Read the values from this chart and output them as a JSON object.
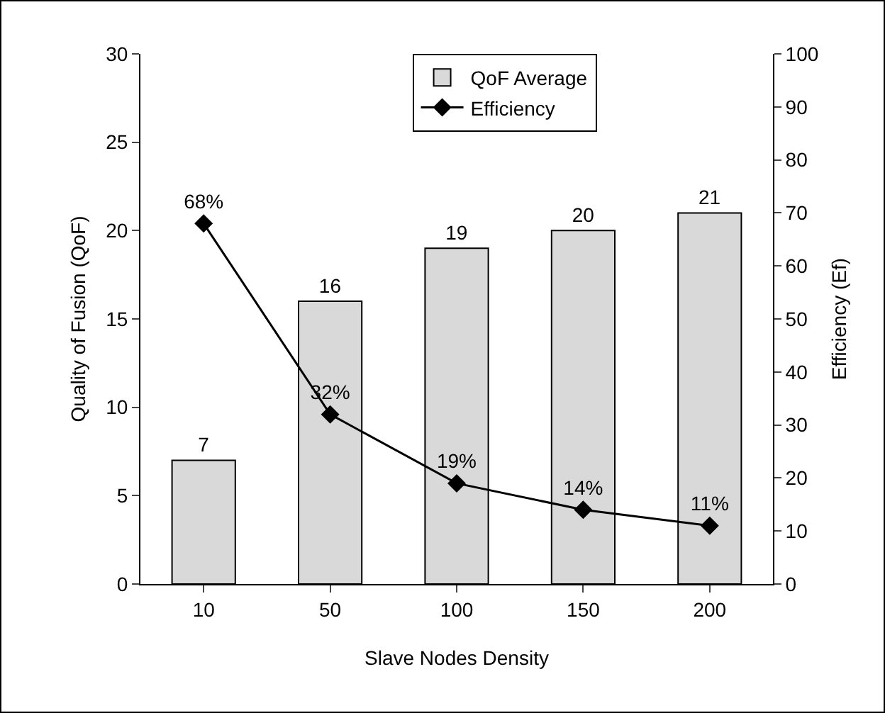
{
  "chart_data": {
    "type": "bar",
    "xlabel": "Slave Nodes Density",
    "ylabel": "Quality of Fusion (QoF)",
    "y2label": "Efficiency (Ef)",
    "categories": [
      "10",
      "50",
      "100",
      "150",
      "200"
    ],
    "series": [
      {
        "name": "QoF Average",
        "color": "#d9d9d9",
        "values": [
          7,
          16,
          19,
          20,
          21
        ],
        "value_labels": [
          "7",
          "16",
          "19",
          "20",
          "21"
        ]
      },
      {
        "name": "Efficiency",
        "type": "line",
        "axis": "y2",
        "color": "#000000",
        "values": [
          68,
          32,
          19,
          14,
          11
        ],
        "value_labels": [
          "68%",
          "32%",
          "19%",
          "14%",
          "11%"
        ]
      }
    ],
    "ylim": [
      0,
      30
    ],
    "yticks": [
      0,
      5,
      10,
      15,
      20,
      25,
      30
    ],
    "y2lim": [
      0,
      100
    ],
    "y2ticks": [
      0,
      10,
      20,
      30,
      40,
      50,
      60,
      70,
      80,
      90,
      100
    ],
    "grid": false,
    "legend": "top right",
    "marker": "diamond",
    "line_style": "solid"
  }
}
